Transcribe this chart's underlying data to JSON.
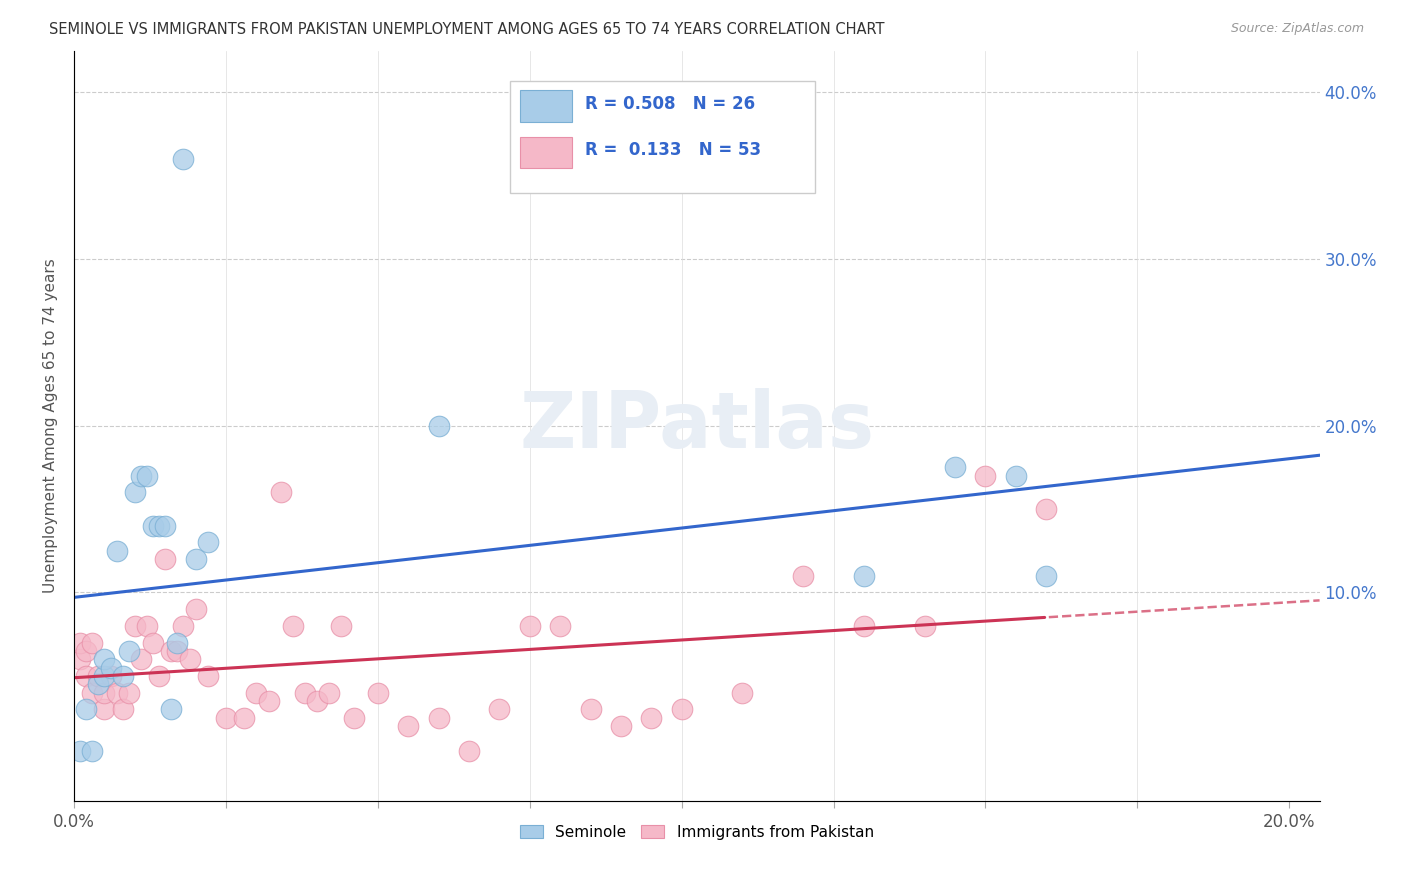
{
  "title": "SEMINOLE VS IMMIGRANTS FROM PAKISTAN UNEMPLOYMENT AMONG AGES 65 TO 74 YEARS CORRELATION CHART",
  "source": "Source: ZipAtlas.com",
  "ylabel": "Unemployment Among Ages 65 to 74 years",
  "xlim": [
    0.0,
    0.205
  ],
  "ylim": [
    -0.025,
    0.425
  ],
  "legend1_label": "Seminole",
  "legend2_label": "Immigrants from Pakistan",
  "R1": 0.508,
  "N1": 26,
  "R2": 0.133,
  "N2": 53,
  "blue_color": "#a8cce8",
  "blue_edge_color": "#7aafd4",
  "pink_color": "#f5b8c8",
  "pink_edge_color": "#e890a8",
  "blue_line_color": "#3366cc",
  "pink_line_color": "#cc3355",
  "watermark_color": "#e8eef5",
  "seminole_x": [
    0.001,
    0.002,
    0.003,
    0.004,
    0.005,
    0.005,
    0.006,
    0.007,
    0.008,
    0.009,
    0.01,
    0.011,
    0.012,
    0.013,
    0.014,
    0.015,
    0.016,
    0.017,
    0.018,
    0.02,
    0.022,
    0.06,
    0.13,
    0.145,
    0.155,
    0.16
  ],
  "seminole_y": [
    0.005,
    0.03,
    0.005,
    0.045,
    0.05,
    0.06,
    0.055,
    0.125,
    0.05,
    0.065,
    0.16,
    0.17,
    0.17,
    0.14,
    0.14,
    0.14,
    0.03,
    0.07,
    0.36,
    0.12,
    0.13,
    0.2,
    0.11,
    0.175,
    0.17,
    0.11
  ],
  "pakistan_x": [
    0.001,
    0.001,
    0.002,
    0.002,
    0.003,
    0.003,
    0.004,
    0.005,
    0.005,
    0.006,
    0.007,
    0.008,
    0.009,
    0.01,
    0.011,
    0.012,
    0.013,
    0.014,
    0.015,
    0.016,
    0.017,
    0.018,
    0.019,
    0.02,
    0.022,
    0.025,
    0.028,
    0.03,
    0.032,
    0.034,
    0.036,
    0.038,
    0.04,
    0.042,
    0.044,
    0.046,
    0.05,
    0.055,
    0.06,
    0.065,
    0.07,
    0.075,
    0.08,
    0.085,
    0.09,
    0.095,
    0.1,
    0.11,
    0.12,
    0.13,
    0.14,
    0.15,
    0.16
  ],
  "pakistan_y": [
    0.06,
    0.07,
    0.05,
    0.065,
    0.04,
    0.07,
    0.05,
    0.03,
    0.04,
    0.05,
    0.04,
    0.03,
    0.04,
    0.08,
    0.06,
    0.08,
    0.07,
    0.05,
    0.12,
    0.065,
    0.065,
    0.08,
    0.06,
    0.09,
    0.05,
    0.025,
    0.025,
    0.04,
    0.035,
    0.16,
    0.08,
    0.04,
    0.035,
    0.04,
    0.08,
    0.025,
    0.04,
    0.02,
    0.025,
    0.005,
    0.03,
    0.08,
    0.08,
    0.03,
    0.02,
    0.025,
    0.03,
    0.04,
    0.11,
    0.08,
    0.08,
    0.17,
    0.15
  ]
}
